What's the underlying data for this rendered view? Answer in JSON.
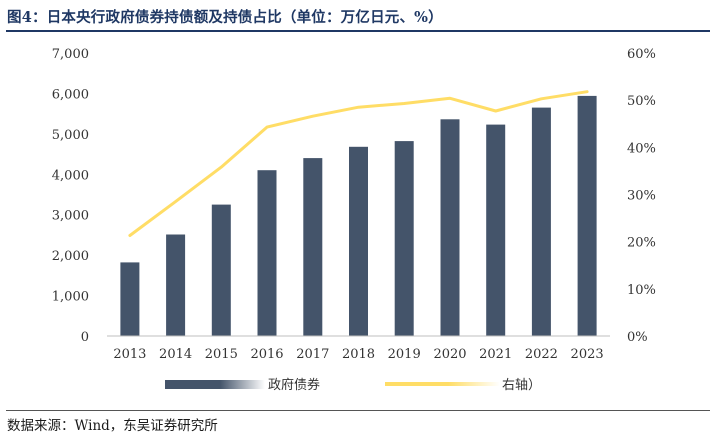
{
  "title": "图4：日本央行政府债券持债额及持债占比（单位：万亿日元、%）",
  "source": "数据来源：Wind，东吴证券研究所",
  "colors": {
    "bar": "#44546a",
    "line": "#ffdd66",
    "title": "#1f3864"
  },
  "chart_data": {
    "type": "bar",
    "categories": [
      "2013",
      "2014",
      "2015",
      "2016",
      "2017",
      "2018",
      "2019",
      "2020",
      "2021",
      "2022",
      "2023"
    ],
    "series": [
      {
        "name": "政府债券",
        "type": "bar",
        "axis": "left",
        "values": [
          1820,
          2510,
          3250,
          4100,
          4400,
          4680,
          4820,
          5360,
          5230,
          5650,
          5940
        ]
      },
      {
        "name": "右轴）",
        "type": "line",
        "axis": "right",
        "values": [
          21.3,
          28.5,
          35.8,
          44.3,
          46.6,
          48.5,
          49.3,
          50.4,
          47.7,
          50.3,
          51.8
        ]
      }
    ],
    "y_left": {
      "ylim": [
        0,
        7000
      ],
      "ticks": [
        "0",
        "1,000",
        "2,000",
        "3,000",
        "4,000",
        "5,000",
        "6,000",
        "7,000"
      ]
    },
    "y_right": {
      "ylim": [
        0,
        60
      ],
      "ticks": [
        "0%",
        "10%",
        "20%",
        "30%",
        "40%",
        "50%",
        "60%"
      ]
    },
    "legend": "bottom",
    "grid": false
  }
}
